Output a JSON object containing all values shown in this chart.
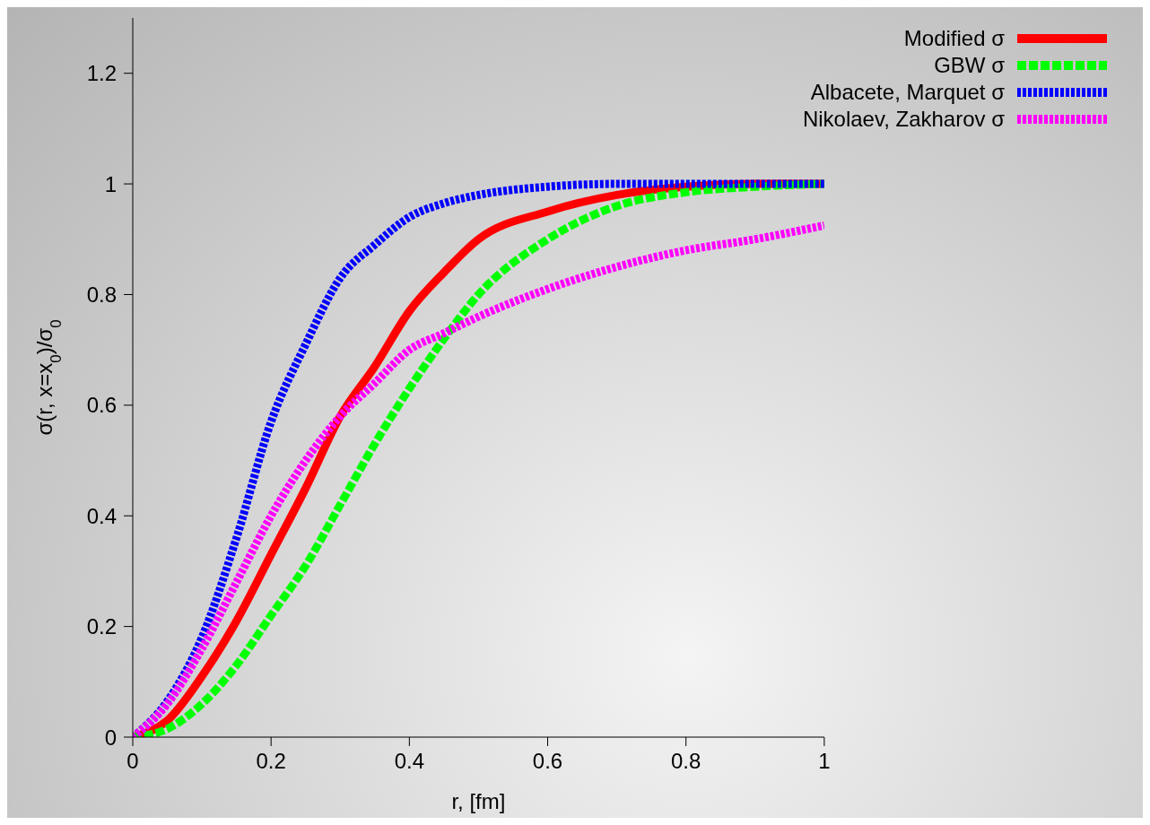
{
  "chart_data": {
    "type": "line",
    "xlabel": "r, [fm]",
    "ylabel": "σ(r, x=x$_{0}$)/σ$_{0}$",
    "x": [
      0,
      0.05,
      0.1,
      0.15,
      0.2,
      0.25,
      0.3,
      0.35,
      0.4,
      0.45,
      0.5,
      0.6,
      0.7,
      0.8,
      0.9,
      1
    ],
    "xlim": [
      0,
      1
    ],
    "xticks": [
      0,
      0.2,
      0.4,
      0.6,
      0.8,
      1
    ],
    "ylim": [
      0,
      1.3
    ],
    "yticks": [
      0,
      0.2,
      0.4,
      0.6,
      0.8,
      1,
      1.2
    ],
    "grid": false,
    "legend": "top right",
    "marker": "none",
    "series": [
      {
        "name": "Modified σ",
        "color": "#ff0000",
        "line_style": "solid",
        "values": [
          0,
          0.03,
          0.11,
          0.21,
          0.33,
          0.45,
          0.58,
          0.67,
          0.77,
          0.84,
          0.9,
          0.95,
          0.98,
          0.995,
          1,
          1
        ]
      },
      {
        "name": "GBW σ",
        "color": "#00ff00",
        "line_style": "dashed",
        "values": [
          0,
          0.015,
          0.06,
          0.13,
          0.22,
          0.31,
          0.42,
          0.53,
          0.63,
          0.72,
          0.8,
          0.9,
          0.96,
          0.985,
          0.995,
          1
        ]
      },
      {
        "name": "Albacete, Marquet σ",
        "color": "#0000ff",
        "line_style": "dotted",
        "values": [
          0,
          0.065,
          0.18,
          0.36,
          0.57,
          0.71,
          0.83,
          0.89,
          0.94,
          0.965,
          0.98,
          0.995,
          1,
          1,
          1,
          1
        ]
      },
      {
        "name": "Nikolaev, Zakharov σ",
        "color": "#ff00ff",
        "line_style": "dotted",
        "values": [
          0,
          0.06,
          0.16,
          0.28,
          0.4,
          0.5,
          0.58,
          0.64,
          0.7,
          0.73,
          0.76,
          0.81,
          0.85,
          0.88,
          0.9,
          0.925
        ]
      }
    ]
  }
}
